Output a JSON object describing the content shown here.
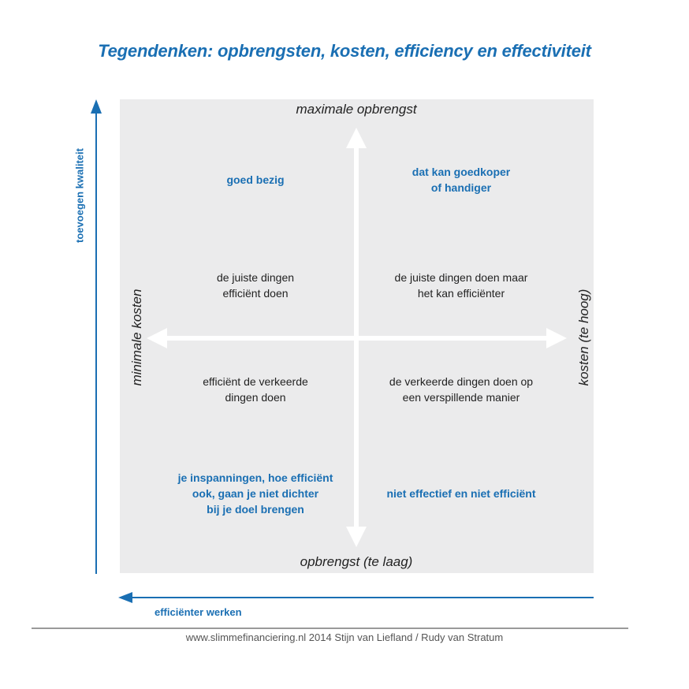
{
  "title": "Tegendenken: opbrengsten, kosten, efficiency en effectiviteit",
  "axes": {
    "top": "maximale opbrengst",
    "bottom": "opbrengst (te laag)",
    "left": "minimale kosten",
    "right": "kosten (te hoog)"
  },
  "quadrants": {
    "top_left": {
      "note": "goed bezig",
      "text": "de juiste dingen\nefficiënt doen"
    },
    "top_right": {
      "note": "dat kan goedkoper\nof handiger",
      "text": "de juiste dingen doen maar\nhet kan efficiënter"
    },
    "bottom_left": {
      "text": "efficiënt de verkeerde\ndingen doen",
      "note": "je inspanningen, hoe efficiënt\nook, gaan je niet dichter\nbij je doel brengen"
    },
    "bottom_right": {
      "text": "de verkeerde dingen doen op\neen verspillende manier",
      "note": "niet effectief en niet efficiënt"
    }
  },
  "outer": {
    "vertical_label": "toevoegen kwaliteit",
    "horizontal_label": "efficiënter werken"
  },
  "footer": "www.slimmefinanciering.nl 2014 Stijn van Liefland / Rudy van Stratum",
  "colors": {
    "accent": "#1a6fb3",
    "panel": "#ebebec",
    "text": "#222222"
  }
}
